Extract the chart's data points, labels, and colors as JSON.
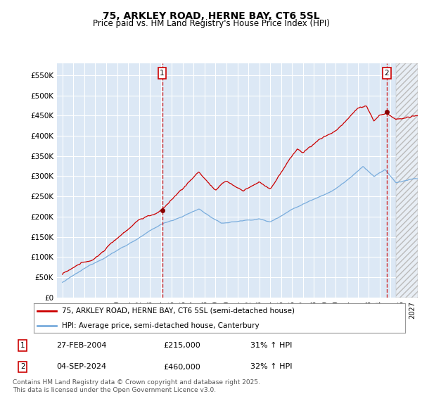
{
  "title": "75, ARKLEY ROAD, HERNE BAY, CT6 5SL",
  "subtitle": "Price paid vs. HM Land Registry's House Price Index (HPI)",
  "ylim": [
    0,
    580000
  ],
  "yticks": [
    0,
    50000,
    100000,
    150000,
    200000,
    250000,
    300000,
    350000,
    400000,
    450000,
    500000,
    550000
  ],
  "ytick_labels": [
    "£0",
    "£50K",
    "£100K",
    "£150K",
    "£200K",
    "£250K",
    "£300K",
    "£350K",
    "£400K",
    "£450K",
    "£500K",
    "£550K"
  ],
  "background_color": "#ffffff",
  "plot_bg_color": "#dce8f5",
  "grid_color": "#ffffff",
  "line_color_red": "#cc0000",
  "line_color_blue": "#7aaddd",
  "sale1_date": "27-FEB-2004",
  "sale1_price": 215000,
  "sale1_pct": "31% ↑ HPI",
  "sale2_date": "04-SEP-2024",
  "sale2_price": 460000,
  "sale2_pct": "32% ↑ HPI",
  "legend_label_red": "75, ARKLEY ROAD, HERNE BAY, CT6 5SL (semi-detached house)",
  "legend_label_blue": "HPI: Average price, semi-detached house, Canterbury",
  "footer": "Contains HM Land Registry data © Crown copyright and database right 2025.\nThis data is licensed under the Open Government Licence v3.0.",
  "xlim_start": 1994.5,
  "xlim_end": 2027.5,
  "sale1_x": 2004.12,
  "sale2_x": 2024.67,
  "hatch_start": 2025.5
}
